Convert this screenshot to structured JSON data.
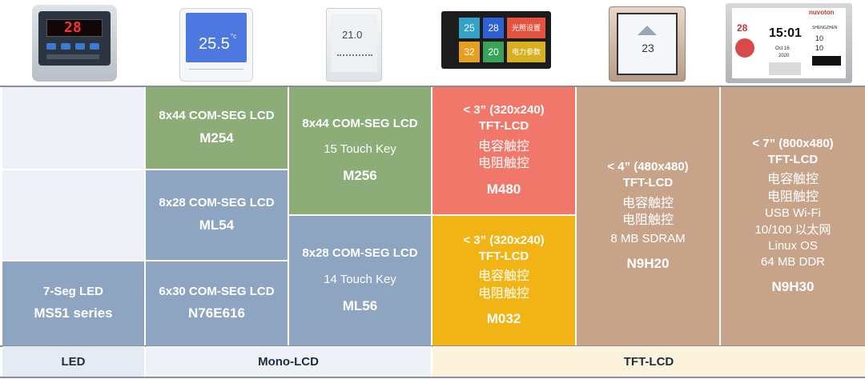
{
  "colors": {
    "green": "#8cac78",
    "blue": "#8ea5c2",
    "red": "#f2776b",
    "orange": "#f2b414",
    "tan": "#c7a38a",
    "light": "#edf1f7",
    "footer_led": "#e5ebf3",
    "footer_mono": "#eef1f6",
    "footer_tft": "#fdf3dc"
  },
  "photos": {
    "p1": {
      "display": "28"
    },
    "p2": {
      "display": "25.5",
      "unit": "°c"
    },
    "p3": {
      "display": "21.0"
    },
    "p4": {
      "tiles": [
        "25",
        "28",
        "光照设置",
        "32",
        "20",
        "电力参数"
      ]
    },
    "p5": {
      "display": "23"
    },
    "p6": {
      "logo": "nuvoton",
      "temp": "28",
      "time": "15:01",
      "date": "Oct 16",
      "year": "2020",
      "city": "SHENGZHEN",
      "t1": "10",
      "t2": "10"
    }
  },
  "cells": {
    "m254": {
      "line1": "8x44 COM-SEG LCD",
      "name": "M254"
    },
    "ml54": {
      "line1": "8x28 COM-SEG LCD",
      "name": "ML54"
    },
    "n76e616": {
      "line1": "6x30 COM-SEG LCD",
      "name": "N76E616"
    },
    "ms51": {
      "line1": "7-Seg LED",
      "name": "MS51 series"
    },
    "m256": {
      "line1": "8x44 COM-SEG LCD",
      "line2": "15 Touch Key",
      "name": "M256"
    },
    "ml56": {
      "line1": "8x28 COM-SEG LCD",
      "line2": "14 Touch Key",
      "name": "ML56"
    },
    "m480": {
      "line1": "< 3” (320x240)",
      "line2": "TFT-LCD",
      "line3": "电容触控",
      "line4": "电阻触控",
      "name": "M480"
    },
    "m032": {
      "line1": "< 3” (320x240)",
      "line2": "TFT-LCD",
      "line3": "电容触控",
      "line4": "电阻触控",
      "name": "M032"
    },
    "n9h20": {
      "line1": "< 4” (480x480)",
      "line2": "TFT-LCD",
      "line3": "电容触控",
      "line4": "电阻触控",
      "line5": "8 MB SDRAM",
      "name": "N9H20"
    },
    "n9h30": {
      "line1": "< 7” (800x480)",
      "line2": "TFT-LCD",
      "line3": "电容触控",
      "line4": "电阻触控",
      "line5": "USB Wi-Fi",
      "line6": "10/100 以太网",
      "line7": "Linux OS",
      "line8": "64 MB DDR",
      "name": "N9H30"
    }
  },
  "footer": {
    "led": "LED",
    "mono": "Mono-LCD",
    "tft": "TFT-LCD"
  }
}
